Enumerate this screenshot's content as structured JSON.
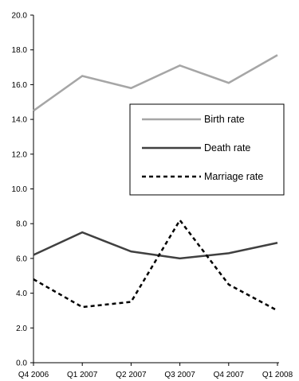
{
  "chart_data": {
    "type": "line",
    "title": "",
    "xlabel": "",
    "ylabel": "",
    "categories": [
      "Q4 2006",
      "Q1 2007",
      "Q2 2007",
      "Q3 2007",
      "Q4 2007",
      "Q1 2008"
    ],
    "ylim": [
      0,
      20
    ],
    "ytick_labels": [
      "0.0",
      "2.0",
      "4.0",
      "6.0",
      "8.0",
      "10.0",
      "12.0",
      "14.0",
      "16.0",
      "18.0",
      "20.0"
    ],
    "grid": false,
    "legend_position": "center-right",
    "series": [
      {
        "name": "Birth rate",
        "values": [
          14.5,
          16.5,
          15.8,
          17.1,
          16.1,
          17.7
        ],
        "color": "#a6a6a6",
        "style": "solid"
      },
      {
        "name": "Death rate",
        "values": [
          6.2,
          7.5,
          6.4,
          6.0,
          6.3,
          6.9
        ],
        "color": "#404040",
        "style": "solid"
      },
      {
        "name": "Marriage rate",
        "values": [
          4.8,
          3.2,
          3.5,
          8.2,
          4.5,
          3.0
        ],
        "color": "#000000",
        "style": "dashed"
      }
    ]
  }
}
